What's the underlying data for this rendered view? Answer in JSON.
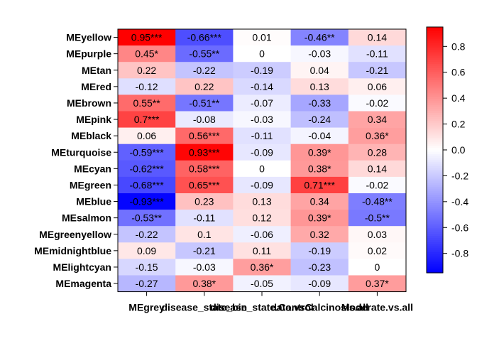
{
  "chart_data": {
    "type": "heatmap",
    "title": "",
    "xlabel": "",
    "ylabel": "",
    "rows": [
      "MEyellow",
      "MEpurple",
      "MEtan",
      "MEred",
      "MEbrown",
      "MEpink",
      "MEblack",
      "MEturquoise",
      "MEcyan",
      "MEgreen",
      "MEblue",
      "MEsalmon",
      "MEgreenyellow",
      "MEmidnightblue",
      "MElightcyan",
      "MEmagenta"
    ],
    "columns": [
      "MEgrey",
      "disease_state_bin",
      "disease_state.Control",
      "data.vsCalcinosis.all",
      "Moderate.vs.all"
    ],
    "values": [
      [
        0.95,
        -0.66,
        0.01,
        -0.46,
        0.14
      ],
      [
        0.45,
        -0.55,
        0,
        -0.03,
        -0.11
      ],
      [
        0.22,
        -0.22,
        -0.19,
        0.04,
        -0.21
      ],
      [
        -0.12,
        0.22,
        -0.14,
        0.13,
        0.06
      ],
      [
        0.55,
        -0.51,
        -0.07,
        -0.33,
        -0.02
      ],
      [
        0.7,
        -0.08,
        -0.03,
        -0.24,
        0.34
      ],
      [
        0.06,
        0.56,
        -0.11,
        -0.04,
        0.36
      ],
      [
        -0.59,
        0.93,
        -0.09,
        0.39,
        0.28
      ],
      [
        -0.62,
        0.58,
        0,
        0.38,
        0.14
      ],
      [
        -0.68,
        0.65,
        -0.09,
        0.71,
        -0.02
      ],
      [
        -0.93,
        0.23,
        0.13,
        0.34,
        -0.48
      ],
      [
        -0.53,
        -0.11,
        0.12,
        0.39,
        -0.5
      ],
      [
        -0.22,
        0.1,
        -0.06,
        0.32,
        0.03
      ],
      [
        0.09,
        -0.21,
        0.11,
        -0.19,
        0.02
      ],
      [
        -0.15,
        -0.03,
        0.36,
        -0.23,
        0
      ],
      [
        -0.27,
        0.38,
        -0.05,
        -0.09,
        0.37
      ]
    ],
    "labels": [
      [
        "0.95***",
        "-0.66***",
        "0.01",
        "-0.46**",
        "0.14"
      ],
      [
        "0.45*",
        "-0.55**",
        "0",
        "-0.03",
        "-0.11"
      ],
      [
        "0.22",
        "-0.22",
        "-0.19",
        "0.04",
        "-0.21"
      ],
      [
        "-0.12",
        "0.22",
        "-0.14",
        "0.13",
        "0.06"
      ],
      [
        "0.55**",
        "-0.51**",
        "-0.07",
        "-0.33",
        "-0.02"
      ],
      [
        "0.7***",
        "-0.08",
        "-0.03",
        "-0.24",
        "0.34"
      ],
      [
        "0.06",
        "0.56***",
        "-0.11",
        "-0.04",
        "0.36*"
      ],
      [
        "-0.59***",
        "0.93***",
        "-0.09",
        "0.39*",
        "0.28"
      ],
      [
        "-0.62***",
        "0.58***",
        "0",
        "0.38*",
        "0.14"
      ],
      [
        "-0.68***",
        "0.65***",
        "-0.09",
        "0.71***",
        "-0.02"
      ],
      [
        "-0.93***",
        "0.23",
        "0.13",
        "0.34",
        "-0.48**"
      ],
      [
        "-0.53**",
        "-0.11",
        "0.12",
        "0.39*",
        "-0.5**"
      ],
      [
        "-0.22",
        "0.1",
        "-0.06",
        "0.32",
        "0.03"
      ],
      [
        "0.09",
        "-0.21",
        "0.11",
        "-0.19",
        "0.02"
      ],
      [
        "-0.15",
        "-0.03",
        "0.36*",
        "-0.23",
        "0"
      ],
      [
        "-0.27",
        "0.38*",
        "-0.05",
        "-0.09",
        "0.37*"
      ]
    ],
    "color_scale": {
      "min": -0.95,
      "max": 0.95,
      "colors": [
        "#0000ff",
        "#ffffff",
        "#ff0000"
      ],
      "ticks": [
        "-0.8",
        "-0.6",
        "-0.4",
        "-0.2",
        "0.0",
        "0.2",
        "0.4",
        "0.6",
        "0.8"
      ]
    },
    "grid": false,
    "legend_placement": "right"
  }
}
